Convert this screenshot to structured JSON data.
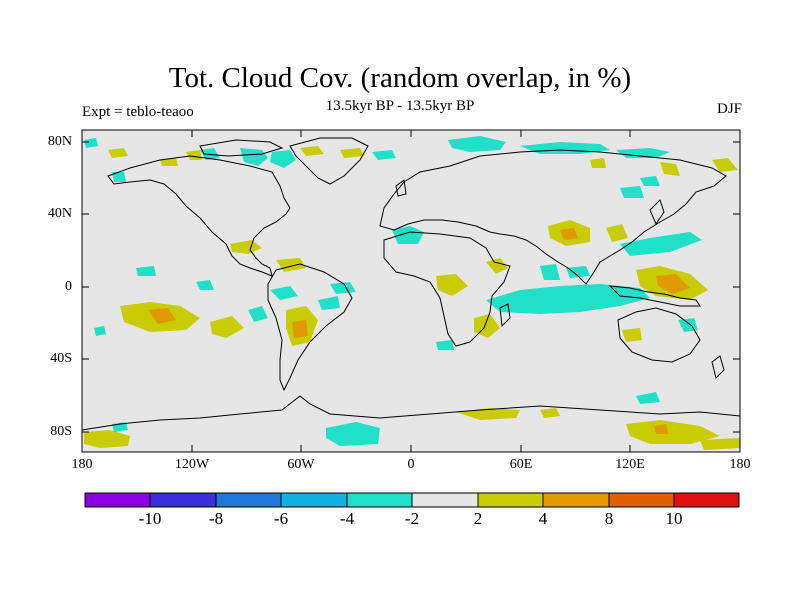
{
  "title": "Tot. Cloud Cov. (random overlap, in %)",
  "subtitle": "13.5kyr BP - 13.5kyr BP",
  "experiment_label": "Expt = teblo-teaoo",
  "season_label": "DJF",
  "map": {
    "projection": "cylindrical equidistant",
    "lon_range": [
      -180,
      180
    ],
    "lat_range": [
      -90,
      90
    ],
    "lat_labels": [
      "80N",
      "40N",
      "0",
      "40S",
      "80S"
    ],
    "lon_labels": [
      "180",
      "120W",
      "60W",
      "0",
      "60E",
      "120E",
      "180"
    ]
  },
  "colorbar": {
    "colors": [
      "#8b00e0",
      "#3b2fd8",
      "#1f78d8",
      "#10b0e0",
      "#20e0c8",
      "#e6e6e6",
      "#c8cc00",
      "#e09a00",
      "#e06000",
      "#e01010"
    ],
    "labels": [
      "-10",
      "-8",
      "-6",
      "-4",
      "-2",
      "2",
      "4",
      "8",
      "10"
    ]
  },
  "colors": {
    "background": "#e6e6e6",
    "cyan": "#20e0c8",
    "olive": "#c8cc00",
    "orange": "#e09a00"
  }
}
